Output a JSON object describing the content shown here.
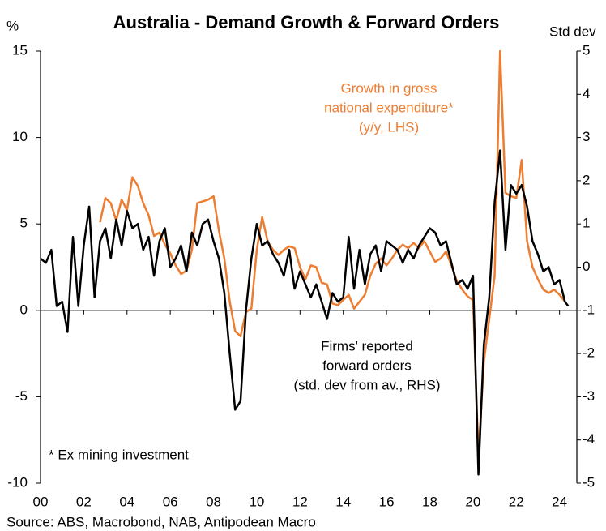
{
  "chart_data": {
    "type": "line",
    "title": "Australia - Demand Growth & Forward Orders",
    "y_unit": "%",
    "y2_unit": "Std dev",
    "annotations": [
      {
        "lines": [
          "Growth in gross",
          "national expenditure*",
          "(y/y, LHS)"
        ],
        "color": "#ED7D31"
      },
      {
        "lines": [
          "Firms' reported",
          "forward orders",
          "(std. dev from av., RHS)"
        ],
        "color": "#000000"
      }
    ],
    "footnote": "* Ex mining investment",
    "source": "Source: ABS, Macrobond, NAB, Antipodean Macro",
    "xlim": [
      2000,
      2024.8
    ],
    "xticks": [
      {
        "value": 2000,
        "label": "00"
      },
      {
        "value": 2002,
        "label": "02"
      },
      {
        "value": 2004,
        "label": "04"
      },
      {
        "value": 2006,
        "label": "06"
      },
      {
        "value": 2008,
        "label": "08"
      },
      {
        "value": 2010,
        "label": "10"
      },
      {
        "value": 2012,
        "label": "12"
      },
      {
        "value": 2014,
        "label": "14"
      },
      {
        "value": 2016,
        "label": "16"
      },
      {
        "value": 2018,
        "label": "18"
      },
      {
        "value": 2020,
        "label": "20"
      },
      {
        "value": 2022,
        "label": "22"
      },
      {
        "value": 2024,
        "label": "24"
      }
    ],
    "ylim": [
      -10,
      15
    ],
    "yticks": [
      -10,
      -5,
      0,
      5,
      10,
      15
    ],
    "y2lim": [
      -5,
      5
    ],
    "y2ticks": [
      -5,
      -4,
      -3,
      -2,
      -1,
      0,
      1,
      2,
      3,
      4,
      5
    ],
    "series": [
      {
        "color": "#ED7D31",
        "axis": "y",
        "x": [
          2002.75,
          2003,
          2003.25,
          2003.5,
          2003.75,
          2004,
          2004.25,
          2004.5,
          2004.75,
          2005,
          2005.25,
          2005.5,
          2005.75,
          2006,
          2006.25,
          2006.5,
          2006.75,
          2007,
          2007.25,
          2007.5,
          2007.75,
          2008,
          2008.25,
          2008.5,
          2008.75,
          2009,
          2009.25,
          2009.5,
          2009.75,
          2010,
          2010.25,
          2010.5,
          2010.75,
          2011,
          2011.25,
          2011.5,
          2011.75,
          2012,
          2012.25,
          2012.5,
          2012.75,
          2013,
          2013.25,
          2013.5,
          2013.75,
          2014,
          2014.25,
          2014.5,
          2014.75,
          2015,
          2015.25,
          2015.5,
          2015.75,
          2016,
          2016.25,
          2016.5,
          2016.75,
          2017,
          2017.25,
          2017.5,
          2017.75,
          2018,
          2018.25,
          2018.5,
          2018.75,
          2019,
          2019.25,
          2019.5,
          2019.75,
          2020,
          2020.25,
          2020.5,
          2020.75,
          2021,
          2021.25,
          2021.5,
          2021.75,
          2022,
          2022.25,
          2022.5,
          2022.75,
          2023,
          2023.25,
          2023.5,
          2023.75,
          2024,
          2024.25
        ],
        "values": [
          5.1,
          6.5,
          6.2,
          5.2,
          6.4,
          5.8,
          7.7,
          7.2,
          6.2,
          5.5,
          4.3,
          4.5,
          3.8,
          3.3,
          2.6,
          2.1,
          2.3,
          3.5,
          6.2,
          6.3,
          6.4,
          6.6,
          4.6,
          3.0,
          0.5,
          -1.2,
          -1.5,
          -0.1,
          0.1,
          3.5,
          5.4,
          4.0,
          3.5,
          3.2,
          3.5,
          3.7,
          3.6,
          2.5,
          1.8,
          2.6,
          2.5,
          1.6,
          1.5,
          0.4,
          0.3,
          0.6,
          0.9,
          0.1,
          0.5,
          0.9,
          2.0,
          2.7,
          3.0,
          2.6,
          3.0,
          3.5,
          3.8,
          3.6,
          3.9,
          3.6,
          4.0,
          3.4,
          2.8,
          3.0,
          3.4,
          2.6,
          1.7,
          1.2,
          0.8,
          0.6,
          -8.4,
          -3.0,
          -0.5,
          2.0,
          15.0,
          6.8,
          6.6,
          6.5,
          8.7,
          4.0,
          2.5,
          1.8,
          1.2,
          1.0,
          1.2,
          0.9,
          0.5
        ]
      },
      {
        "color": "#000000",
        "axis": "y2",
        "x": [
          2000,
          2000.25,
          2000.5,
          2000.75,
          2001,
          2001.25,
          2001.5,
          2001.75,
          2002,
          2002.25,
          2002.5,
          2002.75,
          2003,
          2003.25,
          2003.5,
          2003.75,
          2004,
          2004.25,
          2004.5,
          2004.75,
          2005,
          2005.25,
          2005.5,
          2005.75,
          2006,
          2006.25,
          2006.5,
          2006.75,
          2007,
          2007.25,
          2007.5,
          2007.75,
          2008,
          2008.25,
          2008.5,
          2008.75,
          2009,
          2009.25,
          2009.5,
          2009.75,
          2010,
          2010.25,
          2010.5,
          2010.75,
          2011,
          2011.25,
          2011.5,
          2011.75,
          2012,
          2012.25,
          2012.5,
          2012.75,
          2013,
          2013.25,
          2013.5,
          2013.75,
          2014,
          2014.25,
          2014.5,
          2014.75,
          2015,
          2015.25,
          2015.5,
          2015.75,
          2016,
          2016.25,
          2016.5,
          2016.75,
          2017,
          2017.25,
          2017.5,
          2017.75,
          2018,
          2018.25,
          2018.5,
          2018.75,
          2019,
          2019.25,
          2019.5,
          2019.75,
          2020,
          2020.25,
          2020.5,
          2020.75,
          2021,
          2021.25,
          2021.5,
          2021.75,
          2022,
          2022.25,
          2022.5,
          2022.75,
          2023,
          2023.25,
          2023.5,
          2023.75,
          2024,
          2024.25,
          2024.4
        ],
        "values": [
          0.2,
          0.1,
          0.4,
          -0.9,
          -0.8,
          -1.5,
          0.7,
          -0.9,
          0.5,
          1.4,
          -0.7,
          0.6,
          0.9,
          0.2,
          1.1,
          0.5,
          1.3,
          0.9,
          1.0,
          0.4,
          0.7,
          -0.2,
          0.6,
          0.9,
          0.0,
          0.2,
          0.5,
          -0.1,
          0.8,
          0.5,
          1.0,
          1.1,
          0.6,
          0.2,
          -0.6,
          -2.0,
          -3.3,
          -3.1,
          -1.0,
          0.2,
          1.0,
          0.5,
          0.6,
          0.3,
          0.1,
          -0.2,
          0.4,
          -0.5,
          -0.1,
          -0.4,
          -0.7,
          -0.4,
          -0.8,
          -1.2,
          -0.6,
          -0.8,
          -0.7,
          0.7,
          -0.5,
          0.4,
          -0.4,
          0.3,
          0.5,
          -0.1,
          0.6,
          0.5,
          0.4,
          0.1,
          0.4,
          0.2,
          0.5,
          0.7,
          0.9,
          0.8,
          0.5,
          0.6,
          0.1,
          -0.4,
          -0.3,
          -0.5,
          -0.2,
          -4.8,
          -1.8,
          -0.7,
          1.5,
          2.7,
          0.4,
          1.9,
          1.7,
          1.9,
          1.4,
          0.6,
          0.3,
          -0.1,
          0.0,
          -0.4,
          -0.3,
          -0.8,
          -0.9
        ]
      }
    ]
  }
}
